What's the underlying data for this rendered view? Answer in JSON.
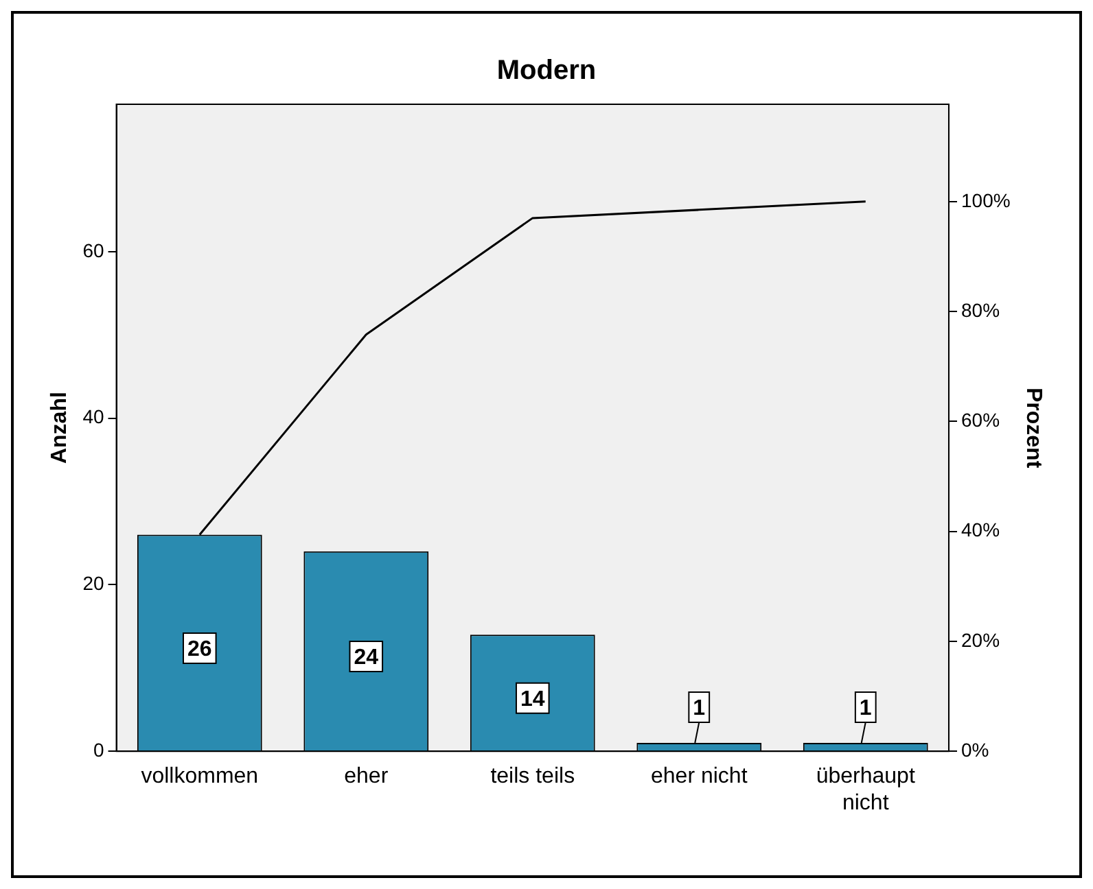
{
  "chart_data": {
    "type": "bar",
    "title": "Modern",
    "ylabel": "Anzahl",
    "y2label": "Prozent",
    "categories": [
      "vollkommen",
      "eher",
      "teils teils",
      "eher nicht",
      "überhaupt nicht"
    ],
    "series": [
      {
        "color": "#2a8bb0",
        "values": [
          26,
          24,
          14,
          1,
          1
        ],
        "value_labels": [
          "26",
          "24",
          "14",
          "1",
          "1"
        ]
      },
      {
        "type": "line",
        "color": "#000000",
        "axis": "y2",
        "values": [
          39.4,
          75.8,
          97.0,
          98.5,
          100
        ]
      }
    ],
    "ylim": [
      0,
      77.7
    ],
    "yticks": [
      0,
      20,
      40,
      60
    ],
    "y2lim": [
      0,
      117.7
    ],
    "y2ticks": [
      {
        "value": 0,
        "label": "0%"
      },
      {
        "value": 20,
        "label": "20%"
      },
      {
        "value": 40,
        "label": "40%"
      },
      {
        "value": 60,
        "label": "60%"
      },
      {
        "value": 80,
        "label": "80%"
      },
      {
        "value": 100,
        "label": "100%"
      }
    ],
    "grid": false,
    "legend": false,
    "marker": "none",
    "line_style": "solid"
  }
}
